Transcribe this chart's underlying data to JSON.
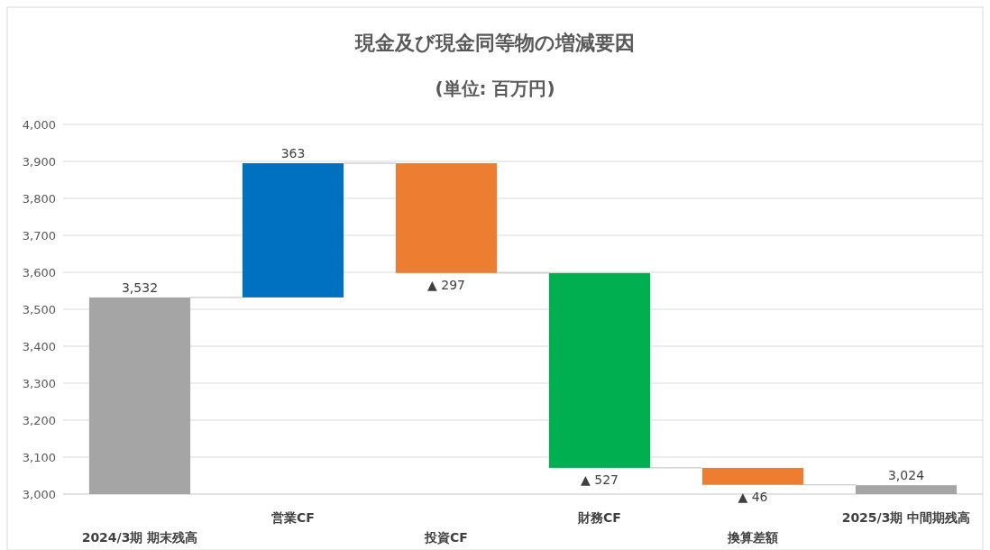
{
  "chart_data": {
    "type": "bar",
    "title": "現金及び現金同等物の増減要因",
    "subtitle": "(単位: 百万円)",
    "categories": [
      "2024/3期 期末残高",
      "営業CF",
      "投資CF",
      "財務CF",
      "換算差額",
      "2025/3期 中間期残高"
    ],
    "values": [
      532,
      363,
      -297,
      -527,
      -46,
      24
    ],
    "base": [
      3000,
      3532,
      3895,
      3598,
      3071,
      3000
    ],
    "colors": [
      "#a5a5a5",
      "#0070c0",
      "#ed7d31",
      "#00b050",
      "#ed7d31",
      "#a5a5a5"
    ],
    "value_labels": [
      "3,532",
      "363",
      "▲ 297",
      "▲ 527",
      "▲ 46",
      "3,024"
    ],
    "ylim": [
      3000,
      4000
    ],
    "yticks": [
      {
        "value": 3000,
        "label": "3,000"
      },
      {
        "value": 3100,
        "label": "3,100"
      },
      {
        "value": 3200,
        "label": "3,200"
      },
      {
        "value": 3300,
        "label": "3,300"
      },
      {
        "value": 3400,
        "label": "3,400"
      },
      {
        "value": 3500,
        "label": "3,500"
      },
      {
        "value": 3600,
        "label": "3,600"
      },
      {
        "value": 3700,
        "label": "3,700"
      },
      {
        "value": 3800,
        "label": "3,800"
      },
      {
        "value": 3900,
        "label": "3,900"
      },
      {
        "value": 4000,
        "label": "4,000"
      }
    ],
    "grid": "y"
  }
}
